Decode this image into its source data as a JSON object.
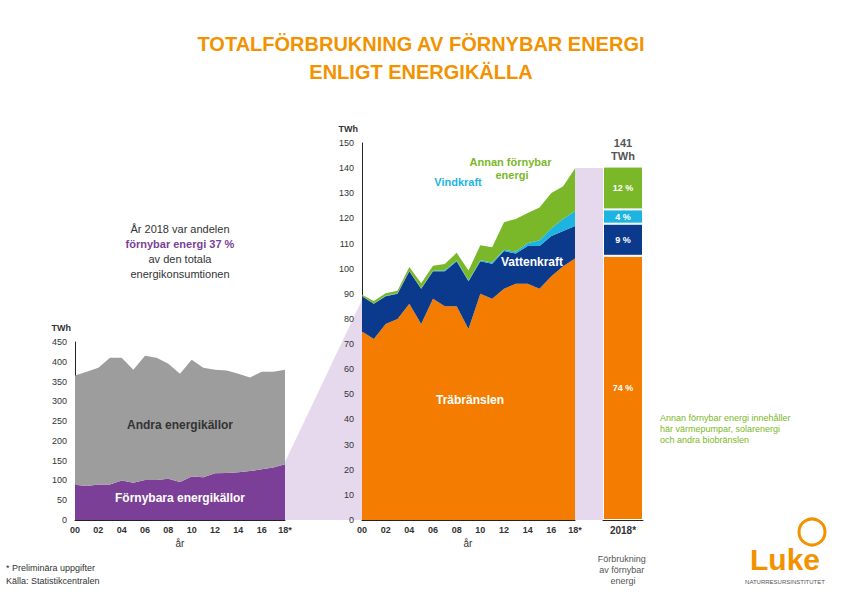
{
  "title": [
    "TOTALFÖRBRUKNING AV FÖRNYBAR ENERGI",
    "ENLIGT ENERGIKÄLLA"
  ],
  "infobox": [
    "År 2018 var andelen",
    "förnybar energi 37 %",
    "av den totala",
    "energikonsumtionen"
  ],
  "footnotes": [
    "* Preliminära uppgifter",
    "Källa: Statistikcentralen"
  ],
  "note": [
    "Annan förnybar energi innehåller",
    "här värmepumpar, solarenergi",
    "och andra biobränslen"
  ],
  "logo": [
    "Luke",
    "NATURRESURSINSTITUTET"
  ],
  "chart_data": [
    {
      "type": "area",
      "stacked": true,
      "legend": false,
      "grid": false,
      "categories": [
        "00",
        null,
        "02",
        null,
        "04",
        null,
        "06",
        null,
        "08",
        null,
        "10",
        null,
        "12",
        null,
        "14",
        null,
        "16",
        null,
        "18*"
      ],
      "x_label": "år",
      "y_label": "TWh",
      "ylim": [
        0,
        450
      ],
      "yticks": [
        0,
        50,
        100,
        150,
        200,
        250,
        300,
        350,
        400,
        450
      ],
      "series": [
        {
          "name": "Förnybara energikällor",
          "color": "#7b3f98",
          "values": [
            89,
            86,
            90,
            90,
            100,
            94,
            101,
            101,
            104,
            96,
            110,
            108,
            118,
            119,
            121,
            124,
            128,
            133,
            141
          ]
        },
        {
          "name": "Andra energikällor",
          "color": "#9d9d9d",
          "values": [
            276,
            289,
            295,
            320,
            310,
            286,
            314,
            309,
            291,
            274,
            295,
            277,
            262,
            259,
            249,
            236,
            247,
            242,
            239
          ]
        }
      ]
    },
    {
      "type": "area",
      "stacked": true,
      "legend": false,
      "grid": false,
      "categories": [
        "00",
        null,
        "02",
        null,
        "04",
        null,
        "06",
        null,
        "08",
        null,
        "10",
        null,
        "12",
        null,
        "14",
        null,
        "16",
        null,
        "18*"
      ],
      "x_label": "år",
      "y_label": "TWh",
      "ylim": [
        0,
        150
      ],
      "yticks": [
        0,
        10,
        20,
        30,
        40,
        50,
        60,
        70,
        80,
        90,
        100,
        110,
        120,
        130,
        140,
        150
      ],
      "series": [
        {
          "name": "Träbränslen",
          "color": "#f47c00",
          "values": [
            75,
            72,
            78,
            80,
            86,
            78,
            88,
            85,
            85,
            76,
            90,
            88,
            92,
            94,
            94,
            92,
            97,
            101,
            104
          ]
        },
        {
          "name": "Vattenkraft",
          "color": "#0b3a8c",
          "values": [
            14,
            14,
            11,
            10,
            13,
            14,
            11,
            14,
            18,
            19,
            13,
            14,
            15,
            12,
            15,
            17,
            16,
            14,
            13
          ]
        },
        {
          "name": "Vindkraft",
          "color": "#1db4e2",
          "values": [
            0.1,
            0.1,
            0.2,
            0.2,
            0.2,
            0.2,
            0.2,
            0.4,
            0.3,
            0.3,
            0.3,
            0.5,
            0.5,
            0.8,
            1.1,
            2.3,
            3.1,
            4.8,
            5.9
          ]
        },
        {
          "name": "Annan förnybar energi",
          "color": "#7ab829",
          "values": [
            0.5,
            1,
            1,
            1,
            1.5,
            2,
            2,
            2.5,
            3,
            4,
            6,
            6,
            11,
            13,
            12,
            13,
            14,
            13,
            17
          ]
        }
      ]
    },
    {
      "type": "bar",
      "stacked": true,
      "legend": false,
      "grid": false,
      "data_labels": true,
      "tick_labels": "x",
      "categories": [
        "2018*"
      ],
      "x_label": "Förbrukning av förnybar energi",
      "total_label": [
        "141",
        "TWh"
      ],
      "ylim": [
        0,
        100
      ],
      "series": [
        {
          "name": "Träbränslen",
          "color": "#f47c00",
          "values": [
            74
          ],
          "value_labels": [
            "74 %"
          ]
        },
        {
          "name": "Vattenkraft",
          "color": "#0b3a8c",
          "values": [
            9
          ],
          "value_labels": [
            "9 %"
          ]
        },
        {
          "name": "Vindkraft",
          "color": "#1db4e2",
          "values": [
            4
          ],
          "value_labels": [
            "4 %"
          ]
        },
        {
          "name": "Annan förnybar energi",
          "color": "#7ab829",
          "values": [
            12
          ],
          "value_labels": [
            "12 %"
          ]
        }
      ]
    }
  ]
}
